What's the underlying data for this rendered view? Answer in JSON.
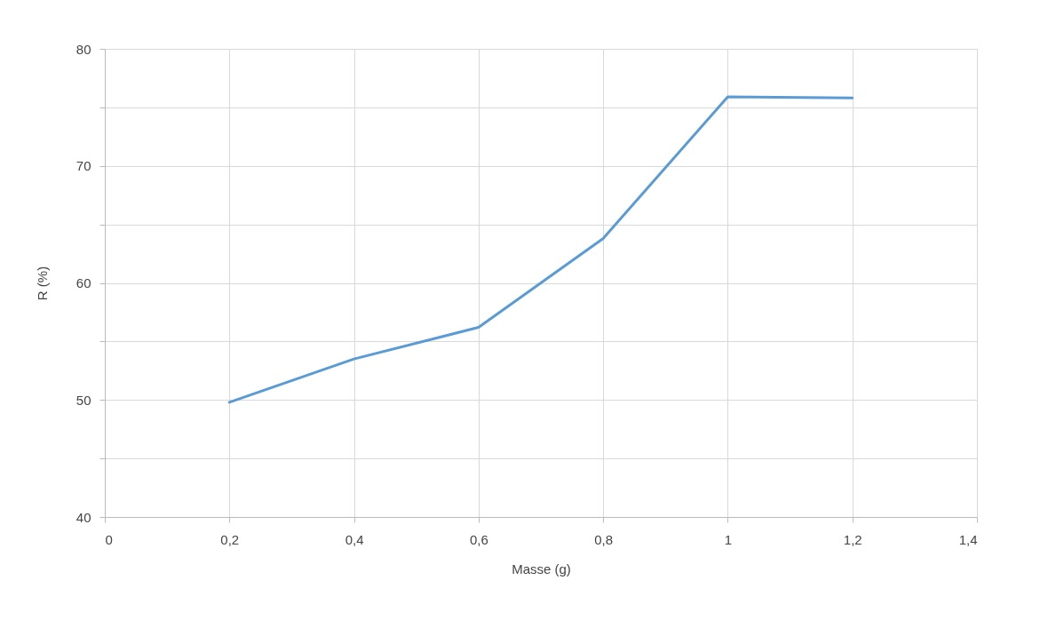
{
  "chart_data": {
    "type": "line",
    "xlabel": "Masse (g)",
    "ylabel": "R (%)",
    "x": [
      0.2,
      0.4,
      0.6,
      0.8,
      1,
      1.2
    ],
    "series": [
      {
        "color": "#5b9bd5",
        "values": [
          49.8,
          53.5,
          56.2,
          63.8,
          75.9,
          75.8
        ]
      }
    ],
    "xlim": [
      0,
      1.4
    ],
    "xticks": [
      0,
      {
        "value": 0.2,
        "label": "0,2"
      },
      {
        "value": 0.4,
        "label": "0,4"
      },
      {
        "value": 0.6,
        "label": "0,6"
      },
      {
        "value": 0.8,
        "label": "0,8"
      },
      1,
      {
        "value": 1.2,
        "label": "1,2"
      },
      {
        "value": 1.4,
        "label": "1,4"
      }
    ],
    "ylim": [
      40,
      80
    ],
    "yticks": [
      40,
      {
        "value": 45,
        "label": null
      },
      50,
      {
        "value": 55,
        "label": null
      },
      60,
      {
        "value": 65,
        "label": null
      },
      70,
      {
        "value": 75,
        "label": null
      },
      80
    ],
    "grid": true,
    "marker": "none",
    "line_style": "solid"
  }
}
